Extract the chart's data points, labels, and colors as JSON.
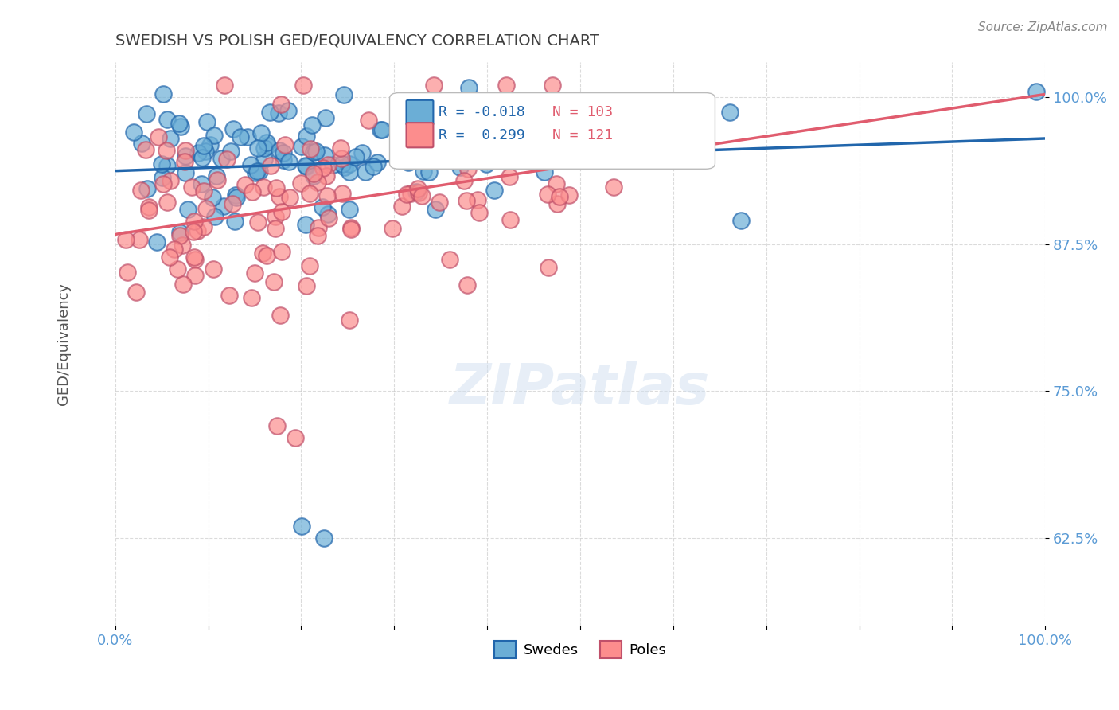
{
  "title": "SWEDISH VS POLISH GED/EQUIVALENCY CORRELATION CHART",
  "source": "Source: ZipAtlas.com",
  "ylabel": "GED/Equivalency",
  "xlabel": "",
  "xlim": [
    0.0,
    1.0
  ],
  "ylim": [
    0.55,
    1.03
  ],
  "yticks": [
    0.625,
    0.75,
    0.875,
    1.0
  ],
  "ytick_labels": [
    "62.5%",
    "75.0%",
    "87.5%",
    "100.0%"
  ],
  "xticks": [
    0.0,
    0.1,
    0.2,
    0.3,
    0.4,
    0.5,
    0.6,
    0.7,
    0.8,
    0.9,
    1.0
  ],
  "xtick_labels": [
    "0.0%",
    "",
    "",
    "",
    "",
    "",
    "",
    "",
    "",
    "",
    "100.0%"
  ],
  "blue_color": "#6baed6",
  "pink_color": "#fc8d8d",
  "blue_line_color": "#2166ac",
  "pink_line_color": "#e05c6e",
  "R_blue": -0.018,
  "N_blue": 103,
  "R_pink": 0.299,
  "N_pink": 121,
  "legend_label_blue": "Swedes",
  "legend_label_pink": "Poles",
  "background_color": "#ffffff",
  "grid_color": "#cccccc",
  "title_color": "#404040",
  "axis_color": "#5b9bd5",
  "value_text_color": "#2166ac"
}
